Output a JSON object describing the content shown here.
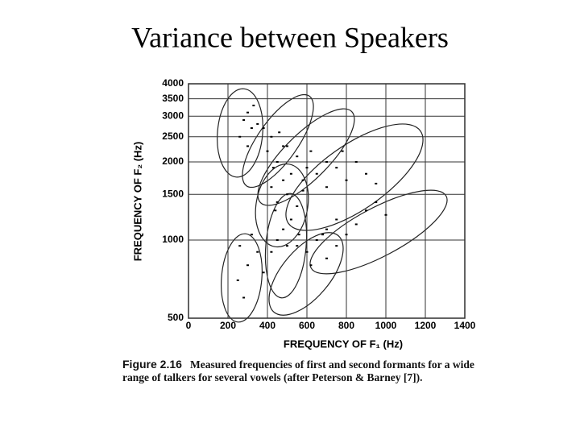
{
  "chart_data": {
    "type": "scatter",
    "title": "Variance between Speakers",
    "xlabel": "FREQUENCY OF F₁ (Hz)",
    "ylabel": "FREQUENCY OF F₂ (Hz)",
    "caption_label": "Figure 2.16",
    "caption": "Measured frequencies of first and second formants for a wide range of talkers for several vowels (after Peterson & Barney [7]).",
    "xlim": [
      0,
      1400
    ],
    "xticks": [
      0,
      200,
      400,
      600,
      800,
      1000,
      1200,
      1400
    ],
    "ylim": [
      500,
      4000
    ],
    "yticks": [
      500,
      1000,
      1500,
      2000,
      2500,
      3000,
      3500,
      4000
    ],
    "yscale": "log",
    "grid": true,
    "color": "#000000",
    "x": [
      280,
      300,
      320,
      260,
      350,
      300,
      330,
      400,
      420,
      450,
      380,
      480,
      430,
      460,
      550,
      600,
      500,
      650,
      580,
      620,
      700,
      750,
      800,
      700,
      850,
      900,
      780,
      950,
      750,
      850,
      900,
      800,
      1000,
      700,
      950,
      600,
      650,
      700,
      550,
      750,
      620,
      680,
      300,
      250,
      350,
      280,
      320,
      380,
      260,
      450,
      480,
      420,
      520,
      500,
      560,
      440,
      450,
      500,
      480,
      550,
      420,
      520,
      580
    ],
    "values": [
      2900,
      3100,
      2700,
      2500,
      2800,
      2300,
      3300,
      2200,
      2500,
      2000,
      2700,
      2300,
      1900,
      2600,
      2100,
      1900,
      2300,
      1800,
      1700,
      2200,
      2000,
      1900,
      1700,
      1600,
      2000,
      1800,
      2200,
      1650,
      1200,
      1150,
      1300,
      1050,
      1250,
      1100,
      1400,
      900,
      1000,
      850,
      950,
      950,
      800,
      1050,
      800,
      700,
      900,
      600,
      1050,
      750,
      950,
      1000,
      1100,
      900,
      1200,
      950,
      1050,
      1300,
      1400,
      1500,
      1700,
      1350,
      1600,
      1800,
      1550
    ]
  }
}
